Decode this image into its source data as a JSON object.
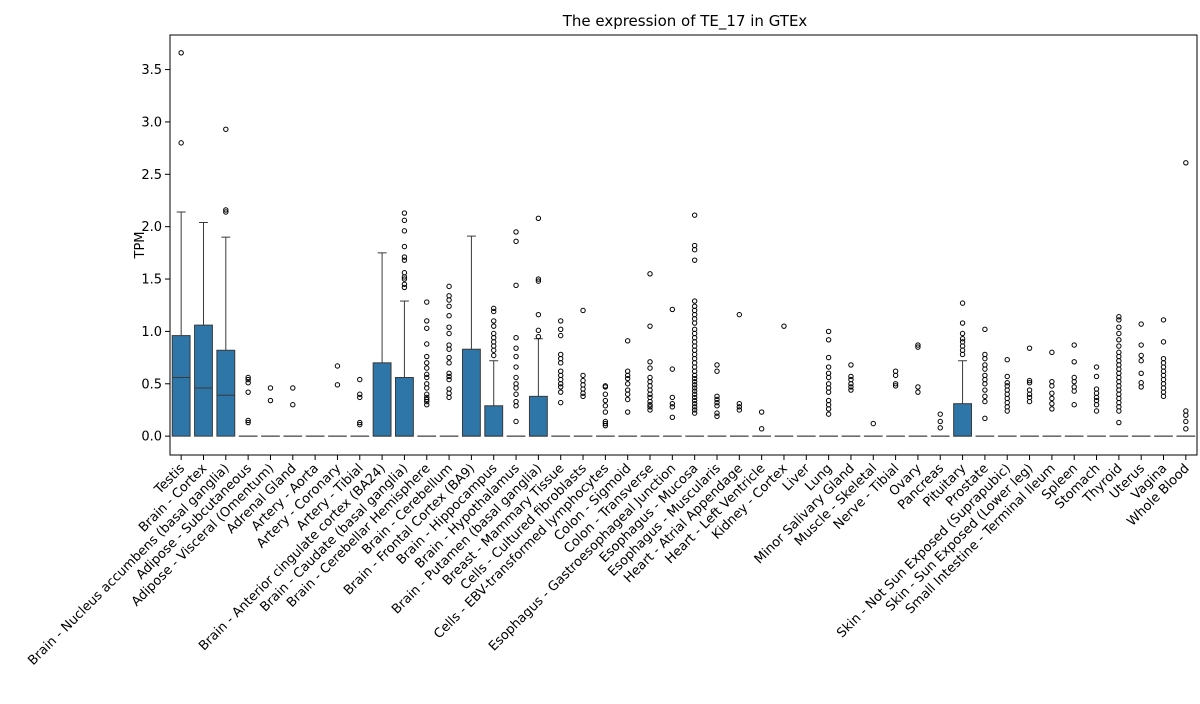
{
  "chart_data": {
    "type": "box",
    "title": "The expression of TE_17 in GTEx",
    "xlabel": "",
    "ylabel": "TPM",
    "ylim": [
      -0.18,
      3.83
    ],
    "yticks": [
      0.0,
      0.5,
      1.0,
      1.5,
      2.0,
      2.5,
      3.0,
      3.5
    ],
    "ytick_labels": [
      "0.0",
      "0.5",
      "1.0",
      "1.5",
      "2.0",
      "2.5",
      "3.0",
      "3.5"
    ],
    "grid": false,
    "legend": "none",
    "box_color": "#2e75a8",
    "categories": [
      "Testis",
      "Brain - Cortex",
      "Brain - Nucleus accumbens (basal ganglia)",
      "Adipose - Subcutaneous",
      "Adipose - Visceral (Omentum)",
      "Adrenal Gland",
      "Artery - Aorta",
      "Artery - Coronary",
      "Artery - Tibial",
      "Brain - Anterior cingulate cortex (BA24)",
      "Brain - Caudate (basal ganglia)",
      "Brain - Cerebellar Hemisphere",
      "Brain - Cerebellum",
      "Brain - Frontal Cortex (BA9)",
      "Brain - Hippocampus",
      "Brain - Hypothalamus",
      "Brain - Putamen (basal ganglia)",
      "Breast - Mammary Tissue",
      "Cells - Cultured fibroblasts",
      "Cells - EBV-transformed lymphocytes",
      "Colon - Sigmoid",
      "Colon - Transverse",
      "Esophagus - Gastroesophageal Junction",
      "Esophagus - Mucosa",
      "Esophagus - Muscularis",
      "Heart - Atrial Appendage",
      "Heart - Left Ventricle",
      "Kidney - Cortex",
      "Liver",
      "Lung",
      "Minor Salivary Gland",
      "Muscle - Skeletal",
      "Nerve - Tibial",
      "Ovary",
      "Pancreas",
      "Pituitary",
      "Prostate",
      "Skin - Not Sun Exposed (Suprapubic)",
      "Skin - Sun Exposed (Lower leg)",
      "Small Intestine - Terminal Ileum",
      "Spleen",
      "Stomach",
      "Thyroid",
      "Uterus",
      "Vagina",
      "Whole Blood"
    ],
    "boxes": [
      {
        "q1": 0,
        "median": 0.56,
        "q3": 0.96,
        "whisker_low": 0,
        "whisker_high": 2.14,
        "outliers": [
          3.66,
          2.8
        ]
      },
      {
        "q1": 0,
        "median": 0.46,
        "q3": 1.06,
        "whisker_low": 0,
        "whisker_high": 2.04,
        "outliers": []
      },
      {
        "q1": 0,
        "median": 0.39,
        "q3": 0.82,
        "whisker_low": 0,
        "whisker_high": 1.9,
        "outliers": [
          2.93,
          2.16,
          2.14
        ]
      },
      {
        "q1": 0,
        "median": 0,
        "q3": 0,
        "whisker_low": 0,
        "whisker_high": 0,
        "outliers": [
          0.56,
          0.54,
          0.51,
          0.42,
          0.15,
          0.13
        ]
      },
      {
        "q1": 0,
        "median": 0,
        "q3": 0,
        "whisker_low": 0,
        "whisker_high": 0,
        "outliers": [
          0.46,
          0.34
        ]
      },
      {
        "q1": 0,
        "median": 0,
        "q3": 0,
        "whisker_low": 0,
        "whisker_high": 0,
        "outliers": [
          0.46,
          0.3
        ]
      },
      {
        "q1": 0,
        "median": 0,
        "q3": 0,
        "whisker_low": 0,
        "whisker_high": 0,
        "outliers": []
      },
      {
        "q1": 0,
        "median": 0,
        "q3": 0,
        "whisker_low": 0,
        "whisker_high": 0,
        "outliers": [
          0.67,
          0.49
        ]
      },
      {
        "q1": 0,
        "median": 0,
        "q3": 0,
        "whisker_low": 0,
        "whisker_high": 0,
        "outliers": [
          0.54,
          0.4,
          0.37,
          0.13,
          0.11
        ]
      },
      {
        "q1": 0,
        "median": 0,
        "q3": 0.7,
        "whisker_low": 0,
        "whisker_high": 1.75,
        "outliers": []
      },
      {
        "q1": 0,
        "median": 0,
        "q3": 0.56,
        "whisker_low": 0,
        "whisker_high": 1.29,
        "outliers": [
          2.13,
          2.06,
          1.96,
          1.81,
          1.71,
          1.68,
          1.56,
          1.52,
          1.5,
          1.45,
          1.42
        ]
      },
      {
        "q1": 0,
        "median": 0,
        "q3": 0,
        "whisker_low": 0,
        "whisker_high": 0,
        "outliers": [
          1.28,
          1.1,
          1.03,
          0.88,
          0.76,
          0.7,
          0.65,
          0.59,
          0.56,
          0.5,
          0.46,
          0.4,
          0.37,
          0.35,
          0.33,
          0.3
        ]
      },
      {
        "q1": 0,
        "median": 0,
        "q3": 0,
        "whisker_low": 0,
        "whisker_high": 0,
        "outliers": [
          1.43,
          1.34,
          1.3,
          1.24,
          1.15,
          1.04,
          0.98,
          0.87,
          0.83,
          0.75,
          0.7,
          0.6,
          0.57,
          0.54,
          0.45,
          0.41,
          0.37
        ]
      },
      {
        "q1": 0,
        "median": 0,
        "q3": 0.83,
        "whisker_low": 0,
        "whisker_high": 1.91,
        "outliers": []
      },
      {
        "q1": 0,
        "median": 0,
        "q3": 0.29,
        "whisker_low": 0,
        "whisker_high": 0.72,
        "outliers": [
          1.22,
          1.19,
          1.1,
          1.05,
          0.98,
          0.94,
          0.9,
          0.86,
          0.82,
          0.77
        ]
      },
      {
        "q1": 0,
        "median": 0,
        "q3": 0,
        "whisker_low": 0,
        "whisker_high": 0,
        "outliers": [
          1.95,
          1.86,
          1.44,
          0.94,
          0.84,
          0.76,
          0.66,
          0.56,
          0.5,
          0.46,
          0.4,
          0.33,
          0.29,
          0.14
        ]
      },
      {
        "q1": 0,
        "median": 0,
        "q3": 0.38,
        "whisker_low": 0,
        "whisker_high": 0.93,
        "outliers": [
          2.08,
          1.5,
          1.48,
          1.16,
          1.01,
          0.95
        ]
      },
      {
        "q1": 0,
        "median": 0,
        "q3": 0,
        "whisker_low": 0,
        "whisker_high": 0,
        "outliers": [
          1.1,
          1.02,
          0.96,
          0.78,
          0.74,
          0.7,
          0.62,
          0.58,
          0.54,
          0.5,
          0.47,
          0.42,
          0.32
        ]
      },
      {
        "q1": 0,
        "median": 0,
        "q3": 0,
        "whisker_low": 0,
        "whisker_high": 0,
        "outliers": [
          1.2,
          0.58,
          0.53,
          0.49,
          0.45,
          0.41,
          0.38
        ]
      },
      {
        "q1": 0,
        "median": 0,
        "q3": 0,
        "whisker_low": 0,
        "whisker_high": 0,
        "outliers": [
          0.48,
          0.47,
          0.4,
          0.34,
          0.29,
          0.23,
          0.14,
          0.12,
          0.1
        ]
      },
      {
        "q1": 0,
        "median": 0,
        "q3": 0,
        "whisker_low": 0,
        "whisker_high": 0,
        "outliers": [
          0.91,
          0.62,
          0.58,
          0.55,
          0.5,
          0.44,
          0.4,
          0.35,
          0.23
        ]
      },
      {
        "q1": 0,
        "median": 0,
        "q3": 0,
        "whisker_low": 0,
        "whisker_high": 0,
        "outliers": [
          1.55,
          1.05,
          0.71,
          0.65,
          0.56,
          0.52,
          0.48,
          0.44,
          0.4,
          0.37,
          0.33,
          0.3,
          0.28,
          0.25
        ]
      },
      {
        "q1": 0,
        "median": 0,
        "q3": 0,
        "whisker_low": 0,
        "whisker_high": 0,
        "outliers": [
          1.21,
          0.64,
          0.37,
          0.31,
          0.28,
          0.18
        ]
      },
      {
        "q1": 0,
        "median": 0,
        "q3": 0,
        "whisker_low": 0,
        "whisker_high": 0,
        "outliers": [
          2.11,
          1.82,
          1.78,
          1.68,
          1.29,
          1.24,
          1.2,
          1.16,
          1.12,
          1.08,
          1.02,
          0.98,
          0.94,
          0.9,
          0.86,
          0.82,
          0.78,
          0.74,
          0.7,
          0.66,
          0.62,
          0.58,
          0.55,
          0.52,
          0.49,
          0.46,
          0.43,
          0.4,
          0.37,
          0.34,
          0.31,
          0.28,
          0.25,
          0.22
        ]
      },
      {
        "q1": 0,
        "median": 0,
        "q3": 0,
        "whisker_low": 0,
        "whisker_high": 0,
        "outliers": [
          0.68,
          0.62,
          0.38,
          0.35,
          0.32,
          0.29,
          0.22,
          0.19
        ]
      },
      {
        "q1": 0,
        "median": 0,
        "q3": 0,
        "whisker_low": 0,
        "whisker_high": 0,
        "outliers": [
          1.16,
          0.31,
          0.28,
          0.25
        ]
      },
      {
        "q1": 0,
        "median": 0,
        "q3": 0,
        "whisker_low": 0,
        "whisker_high": 0,
        "outliers": [
          0.23,
          0.07
        ]
      },
      {
        "q1": 0,
        "median": 0,
        "q3": 0,
        "whisker_low": 0,
        "whisker_high": 0,
        "outliers": [
          1.05
        ]
      },
      {
        "q1": 0,
        "median": 0,
        "q3": 0,
        "whisker_low": 0,
        "whisker_high": 0,
        "outliers": []
      },
      {
        "q1": 0,
        "median": 0,
        "q3": 0,
        "whisker_low": 0,
        "whisker_high": 0,
        "outliers": [
          1.0,
          0.92,
          0.75,
          0.66,
          0.6,
          0.56,
          0.5,
          0.46,
          0.42,
          0.34,
          0.3,
          0.26,
          0.21
        ]
      },
      {
        "q1": 0,
        "median": 0,
        "q3": 0,
        "whisker_low": 0,
        "whisker_high": 0,
        "outliers": [
          0.68,
          0.57,
          0.54,
          0.5,
          0.47,
          0.44
        ]
      },
      {
        "q1": 0,
        "median": 0,
        "q3": 0,
        "whisker_low": 0,
        "whisker_high": 0,
        "outliers": [
          0.12
        ]
      },
      {
        "q1": 0,
        "median": 0,
        "q3": 0,
        "whisker_low": 0,
        "whisker_high": 0,
        "outliers": [
          0.62,
          0.58,
          0.5,
          0.48
        ]
      },
      {
        "q1": 0,
        "median": 0,
        "q3": 0,
        "whisker_low": 0,
        "whisker_high": 0,
        "outliers": [
          0.87,
          0.85,
          0.47,
          0.42
        ]
      },
      {
        "q1": 0,
        "median": 0,
        "q3": 0,
        "whisker_low": 0,
        "whisker_high": 0,
        "outliers": [
          0.21,
          0.14,
          0.08
        ]
      },
      {
        "q1": 0,
        "median": 0,
        "q3": 0.31,
        "whisker_low": 0,
        "whisker_high": 0.72,
        "outliers": [
          1.27,
          1.08,
          0.98,
          0.93,
          0.9,
          0.86,
          0.82,
          0.78
        ]
      },
      {
        "q1": 0,
        "median": 0,
        "q3": 0,
        "whisker_low": 0,
        "whisker_high": 0,
        "outliers": [
          1.02,
          0.78,
          0.74,
          0.68,
          0.64,
          0.58,
          0.54,
          0.5,
          0.44,
          0.38,
          0.33,
          0.17
        ]
      },
      {
        "q1": 0,
        "median": 0,
        "q3": 0,
        "whisker_low": 0,
        "whisker_high": 0,
        "outliers": [
          0.73,
          0.57,
          0.51,
          0.48,
          0.44,
          0.4,
          0.36,
          0.32,
          0.28,
          0.24
        ]
      },
      {
        "q1": 0,
        "median": 0,
        "q3": 0,
        "whisker_low": 0,
        "whisker_high": 0,
        "outliers": [
          0.84,
          0.53,
          0.51,
          0.44,
          0.4,
          0.37,
          0.33
        ]
      },
      {
        "q1": 0,
        "median": 0,
        "q3": 0,
        "whisker_low": 0,
        "whisker_high": 0,
        "outliers": [
          0.8,
          0.52,
          0.48,
          0.41,
          0.36,
          0.31,
          0.26
        ]
      },
      {
        "q1": 0,
        "median": 0,
        "q3": 0,
        "whisker_low": 0,
        "whisker_high": 0,
        "outliers": [
          0.87,
          0.71,
          0.56,
          0.52,
          0.47,
          0.43,
          0.3
        ]
      },
      {
        "q1": 0,
        "median": 0,
        "q3": 0,
        "whisker_low": 0,
        "whisker_high": 0,
        "outliers": [
          0.66,
          0.57,
          0.45,
          0.41,
          0.37,
          0.34,
          0.3,
          0.24
        ]
      },
      {
        "q1": 0,
        "median": 0,
        "q3": 0,
        "whisker_low": 0,
        "whisker_high": 0,
        "outliers": [
          1.14,
          1.11,
          1.04,
          0.98,
          0.92,
          0.86,
          0.8,
          0.76,
          0.72,
          0.68,
          0.64,
          0.6,
          0.56,
          0.52,
          0.48,
          0.44,
          0.4,
          0.36,
          0.32,
          0.28,
          0.24,
          0.13
        ]
      },
      {
        "q1": 0,
        "median": 0,
        "q3": 0,
        "whisker_low": 0,
        "whisker_high": 0,
        "outliers": [
          1.07,
          0.87,
          0.77,
          0.72,
          0.6,
          0.51,
          0.47
        ]
      },
      {
        "q1": 0,
        "median": 0,
        "q3": 0,
        "whisker_low": 0,
        "whisker_high": 0,
        "outliers": [
          1.11,
          0.9,
          0.74,
          0.7,
          0.66,
          0.62,
          0.58,
          0.54,
          0.5,
          0.46,
          0.42,
          0.38
        ]
      },
      {
        "q1": 0,
        "median": 0,
        "q3": 0,
        "whisker_low": 0,
        "whisker_high": 0,
        "outliers": [
          2.61,
          0.24,
          0.2,
          0.14,
          0.07
        ]
      }
    ]
  }
}
